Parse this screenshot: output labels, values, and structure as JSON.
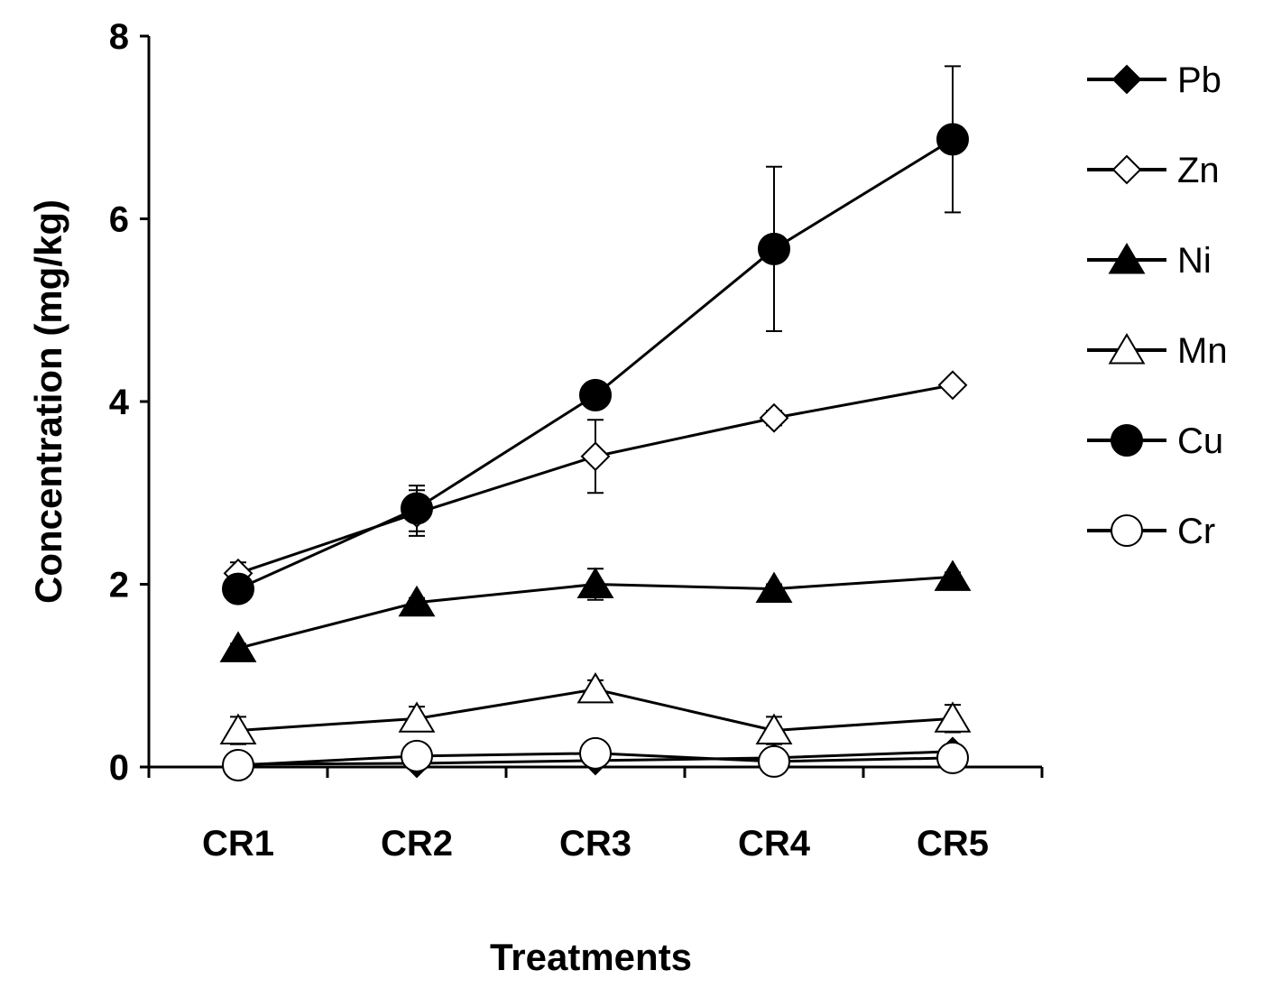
{
  "chart_data": {
    "type": "line",
    "xlabel": "Treatments",
    "ylabel": "Concentration  (mg/kg)",
    "categories": [
      "CR1",
      "CR2",
      "CR3",
      "CR4",
      "CR5"
    ],
    "ylim": [
      0,
      8
    ],
    "yticks": [
      "0",
      "2",
      "4",
      "6",
      "8"
    ],
    "grid": false,
    "legend_position": "right",
    "series": [
      {
        "name": "Pb",
        "marker": "diamond",
        "filled": true,
        "values": [
          0.03,
          0.04,
          0.07,
          0.1,
          0.17
        ],
        "errors": [
          0,
          0,
          0,
          0,
          0
        ]
      },
      {
        "name": "Zn",
        "marker": "diamond",
        "filled": false,
        "values": [
          2.12,
          2.78,
          3.4,
          3.82,
          4.18
        ],
        "errors": [
          0.12,
          0.25,
          0.4,
          0.08,
          0.05
        ]
      },
      {
        "name": "Ni",
        "marker": "triangle",
        "filled": true,
        "values": [
          1.3,
          1.8,
          2.0,
          1.95,
          2.08
        ],
        "errors": [
          0.05,
          0.05,
          0.17,
          0.05,
          0.05
        ]
      },
      {
        "name": "Mn",
        "marker": "triangle",
        "filled": false,
        "values": [
          0.4,
          0.53,
          0.85,
          0.4,
          0.53
        ],
        "errors": [
          0.15,
          0.13,
          0.1,
          0.15,
          0.15
        ]
      },
      {
        "name": "Cu",
        "marker": "circle",
        "filled": true,
        "values": [
          1.95,
          2.83,
          4.07,
          5.67,
          6.87
        ],
        "errors": [
          0.1,
          0.25,
          0,
          0.9,
          0.8
        ]
      },
      {
        "name": "Cr",
        "marker": "circle",
        "filled": false,
        "values": [
          0.02,
          0.12,
          0.15,
          0.06,
          0.1
        ],
        "errors": [
          0,
          0,
          0,
          0,
          0
        ]
      }
    ]
  }
}
